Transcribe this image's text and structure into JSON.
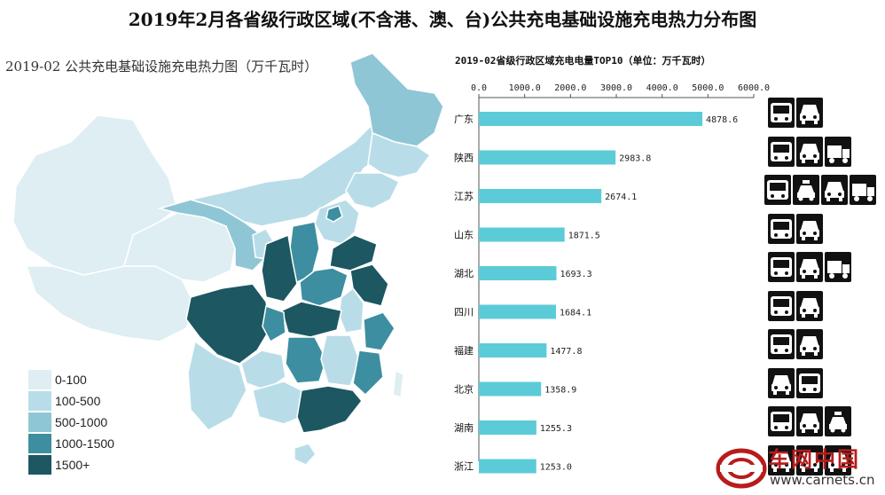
{
  "page": {
    "title": "2019年2月各省级行政区域(不含港、澳、台)公共充电基础设施充电热力分布图"
  },
  "map": {
    "title": "2019-02 公共充电基础设施充电热力图（万千瓦时）",
    "legend": [
      {
        "label": "0-100",
        "color": "#deeef3"
      },
      {
        "label": "100-500",
        "color": "#b9dde8"
      },
      {
        "label": "500-1000",
        "color": "#8fc6d6"
      },
      {
        "label": "1000-1500",
        "color": "#3c8ea0"
      },
      {
        "label": "1500+",
        "color": "#1c5762"
      }
    ]
  },
  "chart_data": {
    "type": "bar",
    "orientation": "horizontal",
    "title": "2019-02省级行政区域充电电量TOP10（单位：万千瓦时）",
    "categories": [
      "广东",
      "陕西",
      "江苏",
      "山东",
      "湖北",
      "四川",
      "福建",
      "北京",
      "湖南",
      "浙江"
    ],
    "values": [
      4878.6,
      2983.8,
      2674.1,
      1871.5,
      1693.3,
      1684.1,
      1477.8,
      1358.9,
      1255.3,
      1253.0
    ],
    "value_labels": [
      "4878.6",
      "2983.8",
      "2674.1",
      "1871.5",
      "1693.3",
      "1684.1",
      "1477.8",
      "1358.9",
      "1255.3",
      "1253.0"
    ],
    "x_ticks": [
      "0.0",
      "1000.0",
      "2000.0",
      "3000.0",
      "4000.0",
      "5000.0",
      "6000.0"
    ],
    "xlim": [
      0,
      6000
    ],
    "x_axis_position": "top",
    "bar_color": "#5ccbd8",
    "grid": false
  },
  "vehicle_icons": [
    [
      "bus-icon",
      "car-icon"
    ],
    [
      "bus-icon",
      "car-icon",
      "truck-icon"
    ],
    [
      "bus-icon",
      "taxi-icon",
      "car-icon",
      "truck-icon"
    ],
    [
      "bus-icon",
      "car-icon"
    ],
    [
      "bus-icon",
      "car-icon",
      "truck-icon"
    ],
    [
      "bus-icon",
      "car-icon"
    ],
    [
      "bus-icon",
      "car-icon"
    ],
    [
      "car-icon",
      "bus-icon"
    ],
    [
      "bus-icon",
      "car-icon",
      "taxi-icon"
    ],
    [
      "car-icon",
      "car-icon",
      "car-icon"
    ]
  ],
  "watermark": {
    "brand": "车网中国",
    "url": "www.carnets.cn"
  }
}
